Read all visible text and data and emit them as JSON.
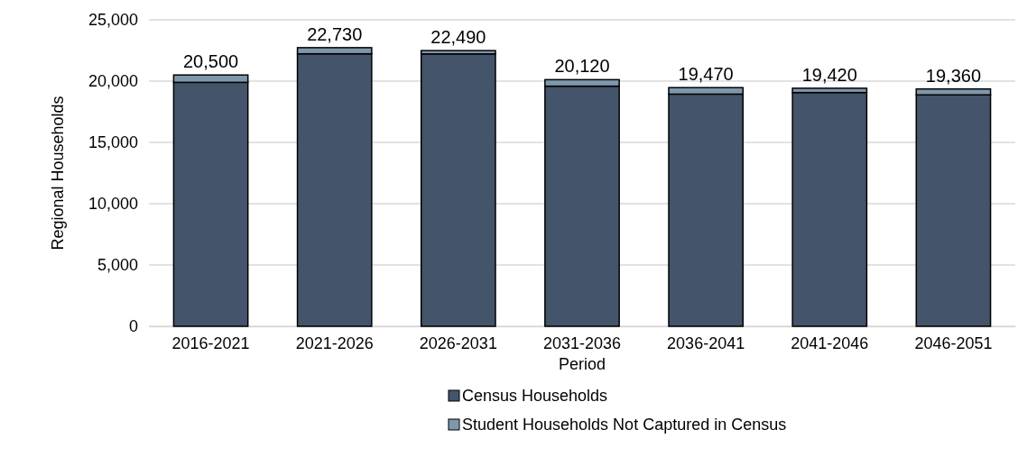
{
  "chart_data": {
    "type": "bar",
    "stacked": true,
    "xlabel": "Period",
    "ylabel": "Regional Households",
    "categories": [
      "2016-2021",
      "2021-2026",
      "2026-2031",
      "2031-2036",
      "2036-2041",
      "2041-2046",
      "2046-2051"
    ],
    "series": [
      {
        "name": "Census Households",
        "color": "#44546a",
        "values": [
          19900,
          22230,
          22220,
          19590,
          18940,
          19070,
          18880
        ]
      },
      {
        "name": "Student Households Not Captured in Census",
        "color": "#7f97ab",
        "values": [
          600,
          500,
          270,
          530,
          530,
          350,
          480
        ]
      }
    ],
    "totals": [
      "20,500",
      "22,730",
      "22,490",
      "20,120",
      "19,470",
      "19,420",
      "19,360"
    ],
    "ylim": [
      0,
      25000
    ],
    "yticks": [
      {
        "value": 0,
        "label": "0"
      },
      {
        "value": 5000,
        "label": "5,000"
      },
      {
        "value": 10000,
        "label": "10,000"
      },
      {
        "value": 15000,
        "label": "15,000"
      },
      {
        "value": 20000,
        "label": "20,000"
      },
      {
        "value": 25000,
        "label": "25,000"
      }
    ],
    "grid": "y",
    "legend": "bottom"
  }
}
